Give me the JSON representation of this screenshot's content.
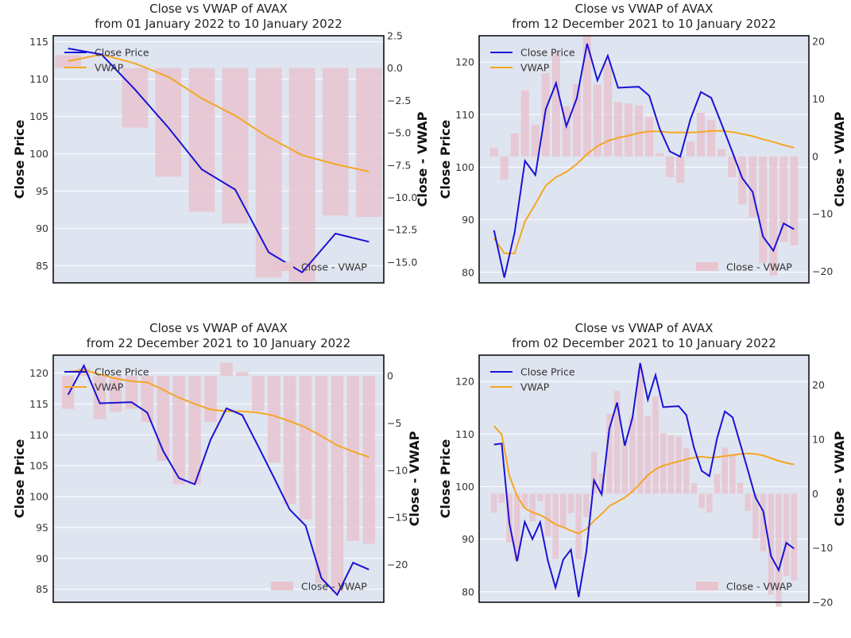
{
  "colors": {
    "background": "#dfe5f0",
    "grid": "#ffffff",
    "close": "#1a12d6",
    "vwap": "#f5a623",
    "bar": "#e8c4cf"
  },
  "chart_data": [
    {
      "type": "line",
      "title": "Close vs VWAP of AVAX",
      "subtitle": "from 01 January 2022 to 10 January 2022",
      "ylabel": "Close Price",
      "y2label": "Close - VWAP",
      "ylim": [
        82.7,
        115.8
      ],
      "y2lim": [
        -16.6,
        2.5
      ],
      "yticks": [
        85,
        90,
        95,
        100,
        105,
        110,
        115
      ],
      "y2ticks": [
        2.5,
        0.0,
        -2.5,
        -5.0,
        -7.5,
        -10.0,
        -12.5,
        -15.0
      ],
      "y2ticklabels": [
        "2.5",
        "0.0",
        "−2.5",
        "−5.0",
        "−7.5",
        "−10.0",
        "−12.5",
        "−15.0"
      ],
      "legend": {
        "close": "Close Price",
        "vwap": "VWAP",
        "bars": "Close - VWAP"
      },
      "series": [
        {
          "name": "Close Price",
          "values": [
            114.1,
            113.3,
            108.6,
            103.5,
            97.9,
            95.2,
            86.8,
            84.1,
            89.3,
            88.2
          ]
        },
        {
          "name": "VWAP",
          "values": [
            112.4,
            113.3,
            112.1,
            110.3,
            107.4,
            105.1,
            102.2,
            99.8,
            98.6,
            97.6
          ]
        },
        {
          "name": "Close - VWAP",
          "values": [
            1.0,
            0.0,
            -4.6,
            -8.4,
            -11.1,
            -12.0,
            -16.2,
            -16.5,
            -11.4,
            -11.5
          ]
        }
      ]
    },
    {
      "type": "line",
      "title": "Close vs VWAP of AVAX",
      "subtitle": "from 12 December 2021 to 10 January 2022",
      "ylabel": "Close Price",
      "y2label": "Close - VWAP",
      "ylim": [
        78,
        125
      ],
      "y2lim": [
        -22,
        21
      ],
      "yticks": [
        80,
        90,
        100,
        110,
        120
      ],
      "y2ticks": [
        20,
        10,
        0,
        -10,
        -20
      ],
      "y2ticklabels": [
        "20",
        "10",
        "0",
        "−10",
        "−20"
      ],
      "legend": {
        "close": "Close Price",
        "vwap": "VWAP",
        "bars": "Close - VWAP"
      },
      "series": [
        {
          "name": "Close Price",
          "values": [
            88,
            79,
            87.6,
            101.2,
            98.5,
            111,
            116,
            107.8,
            113.1,
            123.5,
            116.5,
            121.2,
            115.1,
            115.2,
            115.3,
            113.6,
            107.4,
            103,
            102,
            109.2,
            114.3,
            113.2,
            108.2,
            103.1,
            97.9,
            95.3,
            86.8,
            84.1,
            89.3,
            88.2
          ]
        },
        {
          "name": "VWAP",
          "values": [
            86.5,
            83.6,
            83.6,
            89.7,
            93,
            96.5,
            98.1,
            99.1,
            100.6,
            102.5,
            104,
            105,
            105.6,
            106,
            106.5,
            106.8,
            106.8,
            106.6,
            106.6,
            106.6,
            106.7,
            106.9,
            106.9,
            106.7,
            106.3,
            105.9,
            105.3,
            104.8,
            104.2,
            103.7
          ]
        },
        {
          "name": "Close - VWAP",
          "values": [
            1.5,
            -4.0,
            4.0,
            11.5,
            5.5,
            14.5,
            18.0,
            8.7,
            12.6,
            21.0,
            12.5,
            16.2,
            9.5,
            9.2,
            8.9,
            6.8,
            0.6,
            -3.6,
            -4.6,
            2.6,
            7.6,
            6.3,
            1.3,
            -3.6,
            -8.4,
            -10.6,
            -18.5,
            -20.7,
            -14.9,
            -15.5
          ]
        }
      ]
    },
    {
      "type": "line",
      "title": "Close vs VWAP of AVAX",
      "subtitle": "from 22 December 2021 to 10 January 2022",
      "ylabel": "Close Price",
      "y2label": "Close - VWAP",
      "ylim": [
        82.9,
        122.9
      ],
      "y2lim": [
        -24,
        2.2
      ],
      "yticks": [
        85,
        90,
        95,
        100,
        105,
        110,
        115,
        120
      ],
      "y2ticks": [
        0,
        -5,
        -10,
        -15,
        -20
      ],
      "y2ticklabels": [
        "0",
        "−5",
        "−10",
        "−15",
        "−20"
      ],
      "legend": {
        "close": "Close Price",
        "vwap": "VWAP",
        "bars": "Close - VWAP"
      },
      "series": [
        {
          "name": "Close Price",
          "values": [
            116.5,
            121.2,
            115.1,
            115.2,
            115.3,
            113.6,
            107.4,
            103,
            102,
            109.2,
            114.3,
            113.2,
            108.2,
            103.1,
            97.9,
            95.3,
            86.8,
            84.1,
            89.3,
            88.2
          ]
        },
        {
          "name": "VWAP",
          "values": [
            120.2,
            120.5,
            119.8,
            119.1,
            118.7,
            118.5,
            117.3,
            116,
            115,
            114.1,
            113.8,
            113.8,
            113.6,
            113.1,
            112.2,
            111.2,
            109.8,
            108.3,
            107.3,
            106.4
          ]
        },
        {
          "name": "Close - VWAP",
          "values": [
            -3.5,
            0.8,
            -4.6,
            -3.8,
            -3.5,
            -4.9,
            -9.0,
            -11.5,
            -11.5,
            -4.9,
            1.4,
            0.4,
            -3.7,
            -9.2,
            -13.6,
            -15.2,
            -22.0,
            -22.9,
            -17.5,
            -17.8
          ]
        }
      ]
    },
    {
      "type": "line",
      "title": "Close vs VWAP of AVAX",
      "subtitle": "from 02 December 2021 to 10 January 2022",
      "ylabel": "Close Price",
      "y2label": "Close - VWAP",
      "ylim": [
        78,
        125
      ],
      "y2lim": [
        -20,
        25.5
      ],
      "yticks": [
        80,
        90,
        100,
        110,
        120
      ],
      "y2ticks": [
        20,
        10,
        0,
        -10,
        -20
      ],
      "y2ticklabels": [
        "20",
        "10",
        "0",
        "−10",
        "−20"
      ],
      "legend": {
        "close": "Close Price",
        "vwap": "VWAP",
        "bars": "Close - VWAP"
      },
      "series": [
        {
          "name": "Close Price",
          "values": [
            108,
            108.2,
            93.1,
            85.8,
            93.3,
            90,
            93.2,
            85.9,
            80.8,
            86.1,
            88,
            79,
            87.6,
            101.2,
            98.5,
            111,
            116,
            107.8,
            113.1,
            123.5,
            116.5,
            121.2,
            115.1,
            115.2,
            115.3,
            113.6,
            107.4,
            103,
            102,
            109.2,
            114.3,
            113.2,
            108.2,
            103.1,
            97.9,
            95.3,
            86.8,
            84.1,
            89.3,
            88.2
          ]
        },
        {
          "name": "VWAP",
          "values": [
            111.5,
            109.9,
            102.1,
            98.2,
            95.9,
            95.1,
            94.6,
            93.8,
            92.8,
            92.3,
            91.6,
            91.1,
            91.9,
            93.5,
            94.8,
            96.3,
            97.1,
            97.9,
            99.1,
            100.6,
            102.2,
            103.3,
            104,
            104.4,
            104.8,
            105.2,
            105.5,
            105.7,
            105.5,
            105.6,
            105.8,
            106,
            106.2,
            106.3,
            106.2,
            105.9,
            105.4,
            104.9,
            104.5,
            104.2
          ]
        },
        {
          "name": "Close - VWAP",
          "values": [
            -3.5,
            -1.7,
            -9.0,
            -12.4,
            -2.6,
            -5.1,
            -1.4,
            -7.9,
            -12.0,
            -6.2,
            -3.6,
            -12.1,
            -4.3,
            7.7,
            3.7,
            14.7,
            18.9,
            9.9,
            14.0,
            22.9,
            14.3,
            17.9,
            11.1,
            10.8,
            10.5,
            8.4,
            1.9,
            -2.7,
            -3.5,
            3.6,
            8.5,
            7.2,
            2.0,
            -3.2,
            -8.3,
            -10.6,
            -18.6,
            -20.8,
            -15.2,
            -16.0
          ]
        }
      ]
    }
  ]
}
